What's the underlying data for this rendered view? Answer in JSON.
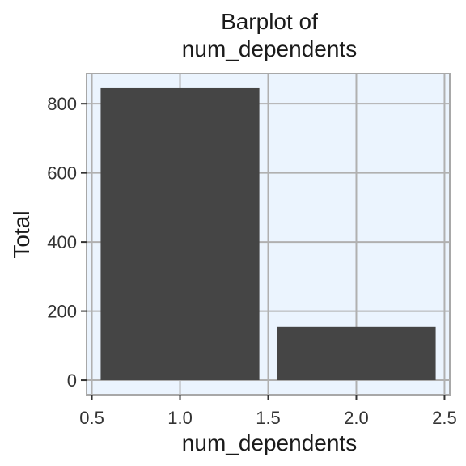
{
  "chart_data": {
    "type": "bar",
    "title": [
      "Barplot of",
      "num_dependents"
    ],
    "xlabel": "num_dependents",
    "ylabel": "Total",
    "x": [
      1,
      2
    ],
    "values": [
      845,
      155
    ],
    "bar_width": 0.9,
    "xlim": [
      0.47,
      2.53
    ],
    "ylim": [
      -42,
      887
    ],
    "x_ticks": [
      0.5,
      1.0,
      1.5,
      2.0,
      2.5
    ],
    "x_tick_labels": [
      "0.5",
      "1.0",
      "1.5",
      "2.0",
      "2.5"
    ],
    "y_ticks": [
      0,
      200,
      400,
      600,
      800
    ],
    "y_tick_labels": [
      "0",
      "200",
      "400",
      "600",
      "800"
    ],
    "grid": true,
    "colors": {
      "bar": "#454545",
      "panel_background": "#ebf4fe",
      "grid": "#b0b0b0",
      "panel_border": "#a8a8a8"
    }
  }
}
